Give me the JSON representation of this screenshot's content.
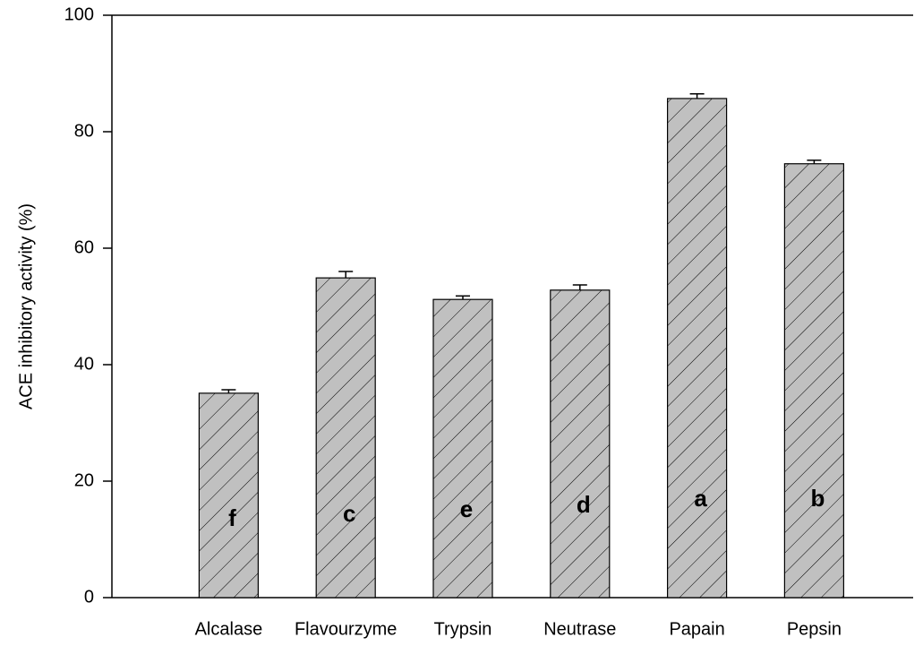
{
  "chart_data": {
    "type": "bar",
    "y_label": "ACE inhibitory activity (%)",
    "categories": [
      "Alcalase",
      "Flavourzyme",
      "Trypsin",
      "Neutrase",
      "Papain",
      "Pepsin"
    ],
    "values": [
      35.1,
      54.9,
      51.2,
      52.8,
      85.7,
      74.5
    ],
    "errors": [
      0.6,
      1.1,
      0.6,
      0.9,
      0.8,
      0.6
    ],
    "letters": [
      "f",
      "c",
      "e",
      "d",
      "a",
      "b"
    ],
    "color": "#c0c0c0",
    "ylim": [
      0,
      100
    ],
    "yticks": [
      0,
      20,
      40,
      60,
      80,
      100
    ]
  }
}
